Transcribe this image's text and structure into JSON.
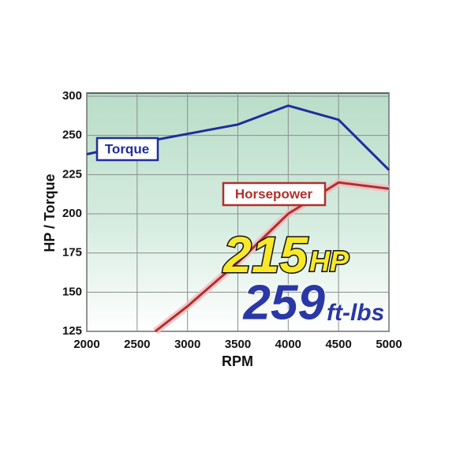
{
  "chart_data": {
    "type": "line",
    "x_label": "RPM",
    "y_label": "HP / Torque",
    "xlim": [
      2000,
      5000
    ],
    "xticks": [
      2000,
      2500,
      3000,
      3500,
      4000,
      4500,
      5000
    ],
    "ylim": [
      125,
      300
    ],
    "yticks": [
      125,
      150,
      175,
      200,
      225,
      250,
      300
    ],
    "grid": true,
    "series": [
      {
        "name": "Torque",
        "color": "#1f2d9c",
        "x": [
          2000,
          2500,
          3000,
          3500,
          4000,
          4500,
          5000
        ],
        "values": [
          238,
          245,
          252,
          264,
          288,
          270,
          228
        ]
      },
      {
        "name": "Horsepower",
        "color": "#b0302a",
        "x": [
          2680,
          3000,
          3500,
          4000,
          4500,
          5000
        ],
        "values": [
          125,
          141,
          169,
          200,
          220,
          216
        ]
      }
    ],
    "annotations": [
      "215",
      "HP",
      "259",
      "ft-lbs"
    ]
  }
}
